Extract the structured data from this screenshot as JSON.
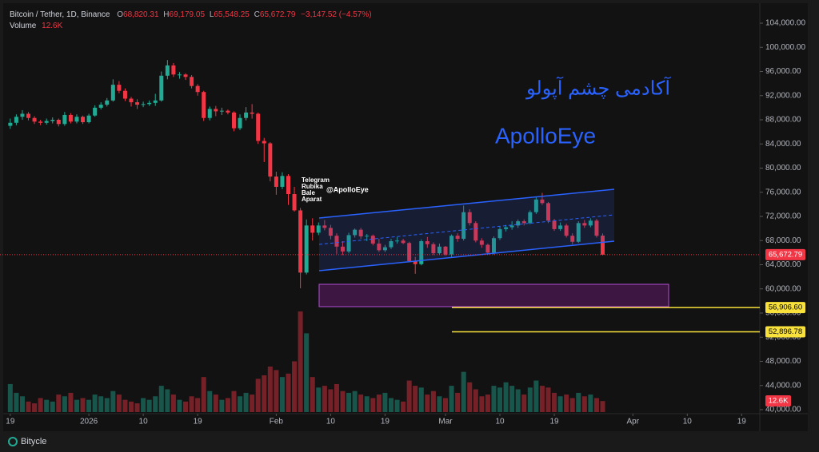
{
  "chart_data": {
    "type": "candlestick",
    "header": {
      "symbol": "Bitcoin / Tether, 1D, Binance",
      "o": "O",
      "open": "68,820.31",
      "h": "H",
      "high": "69,179.05",
      "l": "L",
      "low": "65,548.25",
      "c": "C",
      "close": "65,672.79",
      "change": "−3,147.52 (−4.57%)",
      "volume_name": "Volume",
      "volume": "12.6K"
    },
    "annotations": {
      "persian": "آکادمی چشم آپولو",
      "brand": "ApolloEye",
      "channels": [
        "Telegram",
        "Rubika",
        "Bale",
        "Aparat"
      ],
      "handle": "@ApolloEye"
    },
    "x": [
      0,
      1,
      2,
      3,
      4,
      5,
      6,
      7,
      8,
      9,
      10,
      11,
      12,
      13,
      14,
      15,
      16,
      17,
      18,
      19,
      20,
      21,
      22,
      23,
      24,
      25,
      26,
      27,
      28,
      29,
      30,
      31,
      32,
      33,
      34,
      35,
      36,
      37,
      38,
      39,
      40,
      41,
      42,
      43,
      44,
      45,
      46,
      47,
      48,
      49,
      50,
      51,
      52,
      53,
      54,
      55,
      56,
      57,
      58,
      59,
      60,
      61,
      62,
      63,
      64,
      65,
      66,
      67,
      68,
      69,
      70,
      71,
      72,
      73,
      74,
      75,
      76,
      77,
      78,
      79,
      80,
      81,
      82,
      83,
      84,
      85,
      86,
      87,
      88,
      89,
      90,
      91,
      92,
      93,
      94,
      95,
      96,
      97,
      98
    ],
    "candles": [
      [
        87000,
        88200,
        86500,
        87500
      ],
      [
        87500,
        88900,
        87100,
        88500
      ],
      [
        88500,
        89600,
        88000,
        89000
      ],
      [
        89000,
        89300,
        87900,
        88300
      ],
      [
        88300,
        88600,
        87300,
        87700
      ],
      [
        87700,
        88000,
        87100,
        87500
      ],
      [
        87500,
        88200,
        87200,
        87800
      ],
      [
        87800,
        88400,
        87400,
        88000
      ],
      [
        88000,
        88200,
        86900,
        87300
      ],
      [
        87300,
        89300,
        87000,
        88800
      ],
      [
        88800,
        89100,
        87400,
        87700
      ],
      [
        87700,
        88900,
        87400,
        88500
      ],
      [
        88500,
        88700,
        87300,
        87600
      ],
      [
        87600,
        89000,
        87400,
        88700
      ],
      [
        88700,
        90400,
        88500,
        90000
      ],
      [
        90000,
        90900,
        89700,
        90500
      ],
      [
        90500,
        91600,
        90200,
        91200
      ],
      [
        91200,
        94700,
        91000,
        93800
      ],
      [
        93800,
        94400,
        92400,
        92800
      ],
      [
        92800,
        93200,
        91100,
        91500
      ],
      [
        91500,
        91800,
        90200,
        90900
      ],
      [
        90900,
        91400,
        89800,
        90500
      ],
      [
        90500,
        91000,
        90100,
        90600
      ],
      [
        90600,
        91200,
        90300,
        90800
      ],
      [
        90800,
        92300,
        90300,
        91200
      ],
      [
        91200,
        96000,
        91000,
        95300
      ],
      [
        95300,
        97900,
        94700,
        97000
      ],
      [
        97000,
        97400,
        95100,
        95500
      ],
      [
        95500,
        95900,
        94800,
        95500
      ],
      [
        95500,
        95700,
        94600,
        95100
      ],
      [
        95100,
        95400,
        93200,
        93600
      ],
      [
        93600,
        93900,
        92000,
        92600
      ],
      [
        92600,
        92800,
        87800,
        88300
      ],
      [
        88300,
        90200,
        87900,
        89800
      ],
      [
        89800,
        90300,
        88600,
        89400
      ],
      [
        89400,
        90000,
        88800,
        89500
      ],
      [
        89500,
        89700,
        88900,
        89200
      ],
      [
        89200,
        89400,
        86100,
        86600
      ],
      [
        86600,
        88900,
        86300,
        88300
      ],
      [
        88300,
        90100,
        87900,
        89200
      ],
      [
        89200,
        90600,
        88200,
        89000
      ],
      [
        89000,
        89200,
        84000,
        84500
      ],
      [
        84500,
        85000,
        81000,
        84100
      ],
      [
        84100,
        84300,
        77800,
        78600
      ],
      [
        78600,
        79400,
        75600,
        76900
      ],
      [
        76900,
        79300,
        76500,
        78700
      ],
      [
        78700,
        79000,
        73900,
        75700
      ],
      [
        75700,
        76900,
        72800,
        73000
      ],
      [
        73000,
        73400,
        60100,
        62700
      ],
      [
        62700,
        71500,
        62400,
        70500
      ],
      [
        70500,
        71700,
        68000,
        69300
      ],
      [
        69300,
        71000,
        68900,
        70500
      ],
      [
        70500,
        71400,
        69700,
        70100
      ],
      [
        70100,
        70600,
        68200,
        68800
      ],
      [
        68800,
        69200,
        65800,
        67000
      ],
      [
        67000,
        67900,
        65600,
        66200
      ],
      [
        66200,
        69300,
        65900,
        68900
      ],
      [
        68900,
        70000,
        68500,
        69800
      ],
      [
        69800,
        70100,
        68300,
        68700
      ],
      [
        68700,
        69100,
        67900,
        68800
      ],
      [
        68800,
        69000,
        67200,
        67500
      ],
      [
        67500,
        68300,
        66100,
        66400
      ],
      [
        66400,
        67300,
        66100,
        66900
      ],
      [
        66900,
        68300,
        66600,
        67900
      ],
      [
        67900,
        68600,
        67500,
        68000
      ],
      [
        68000,
        68300,
        67400,
        67600
      ],
      [
        67600,
        67800,
        64400,
        64600
      ],
      [
        64600,
        65300,
        62500,
        64100
      ],
      [
        64100,
        68200,
        63900,
        67900
      ],
      [
        67900,
        68600,
        66800,
        67400
      ],
      [
        67400,
        67700,
        65600,
        65900
      ],
      [
        65900,
        67500,
        65700,
        67000
      ],
      [
        67000,
        67100,
        65500,
        65700
      ],
      [
        65700,
        69000,
        65200,
        68800
      ],
      [
        68800,
        69200,
        67800,
        68300
      ],
      [
        68300,
        73800,
        68000,
        72700
      ],
      [
        72700,
        73200,
        70500,
        70900
      ],
      [
        70900,
        71200,
        67700,
        68000
      ],
      [
        68000,
        68400,
        66800,
        67300
      ],
      [
        67300,
        67500,
        65700,
        66000
      ],
      [
        66000,
        68700,
        65700,
        68400
      ],
      [
        68400,
        70300,
        68100,
        69900
      ],
      [
        69900,
        70600,
        69500,
        70200
      ],
      [
        70200,
        71200,
        69800,
        70500
      ],
      [
        70500,
        71500,
        70100,
        71200
      ],
      [
        71200,
        71500,
        70500,
        70900
      ],
      [
        70900,
        73000,
        70700,
        72700
      ],
      [
        72700,
        75200,
        72400,
        74800
      ],
      [
        74800,
        75900,
        73900,
        74200
      ],
      [
        74200,
        74400,
        70900,
        71300
      ],
      [
        71300,
        71600,
        69600,
        69900
      ],
      [
        69900,
        71000,
        69600,
        70500
      ],
      [
        70500,
        70800,
        68500,
        68800
      ],
      [
        68800,
        69200,
        67400,
        67800
      ],
      [
        67800,
        71200,
        67600,
        70900
      ],
      [
        70900,
        71400,
        70100,
        70500
      ],
      [
        70500,
        71700,
        70200,
        71300
      ],
      [
        71300,
        71600,
        68500,
        68800
      ],
      [
        68820.31,
        69179.05,
        65548.25,
        65672.79
      ]
    ],
    "volume": [
      32000,
      22000,
      18000,
      12000,
      10000,
      16000,
      14000,
      12000,
      20000,
      18000,
      22000,
      14000,
      16000,
      14000,
      20000,
      18000,
      16000,
      24000,
      20000,
      14000,
      12000,
      10000,
      16000,
      14000,
      18000,
      30000,
      26000,
      20000,
      14000,
      12000,
      18000,
      16000,
      40000,
      24000,
      20000,
      14000,
      16000,
      24000,
      18000,
      22000,
      20000,
      38000,
      42000,
      52000,
      48000,
      40000,
      44000,
      58000,
      115000,
      90000,
      40000,
      28000,
      30000,
      26000,
      32000,
      24000,
      22000,
      24000,
      20000,
      18000,
      16000,
      20000,
      22000,
      16000,
      14000,
      12000,
      36000,
      30000,
      28000,
      20000,
      24000,
      18000,
      16000,
      30000,
      22000,
      46000,
      34000,
      26000,
      18000,
      20000,
      30000,
      28000,
      34000,
      30000,
      26000,
      20000,
      28000,
      36000,
      30000,
      28000,
      22000,
      18000,
      20000,
      16000,
      22000,
      18000,
      20000,
      16000,
      12600
    ],
    "volume_label": "12.6K",
    "up_color": "#22ab94",
    "down_color": "#f23645",
    "xlim": [
      -1.7,
      124
    ],
    "xticks": [
      {
        "value": 0,
        "label": "19"
      },
      {
        "value": 13,
        "label": "2026"
      },
      {
        "value": 22,
        "label": "10"
      },
      {
        "value": 31,
        "label": "19"
      },
      {
        "value": 44,
        "label": "Feb"
      },
      {
        "value": 53,
        "label": "10"
      },
      {
        "value": 62,
        "label": "19"
      },
      {
        "value": 72,
        "label": "Mar"
      },
      {
        "value": 81,
        "label": "10"
      },
      {
        "value": 90,
        "label": "19"
      },
      {
        "value": 103,
        "label": "Apr"
      },
      {
        "value": 112,
        "label": "10"
      },
      {
        "value": 121,
        "label": "19"
      }
    ],
    "ylim": [
      39340,
      107835
    ],
    "yticks": [
      {
        "value": 40000,
        "label": "40,000.00"
      },
      {
        "value": 44000,
        "label": "44,000.00"
      },
      {
        "value": 48000,
        "label": "48,000.00"
      },
      {
        "value": 52000,
        "label": "52,000.00"
      },
      {
        "value": 56000,
        "label": "56,000.00"
      },
      {
        "value": 60000,
        "label": "60,000.00"
      },
      {
        "value": 64000,
        "label": "64,000.00"
      },
      {
        "value": 68000,
        "label": "68,000.00"
      },
      {
        "value": 72000,
        "label": "72,000.00"
      },
      {
        "value": 76000,
        "label": "76,000.00"
      },
      {
        "value": 80000,
        "label": "80,000.00"
      },
      {
        "value": 84000,
        "label": "84,000.00"
      },
      {
        "value": 88000,
        "label": "88,000.00"
      },
      {
        "value": 92000,
        "label": "92,000.00"
      },
      {
        "value": 96000,
        "label": "96,000.00"
      },
      {
        "value": 100000,
        "label": "100,000.00"
      },
      {
        "value": 104000,
        "label": "104,000.00"
      }
    ],
    "last_price_label": "65,672.79",
    "price_lines": [
      {
        "value": 56906.6,
        "label": "56,906.60",
        "color": "#f7e13a"
      },
      {
        "value": 52896.78,
        "label": "52,896.78",
        "color": "#f7e13a"
      }
    ],
    "grid": false,
    "footer": "Bitycle"
  }
}
